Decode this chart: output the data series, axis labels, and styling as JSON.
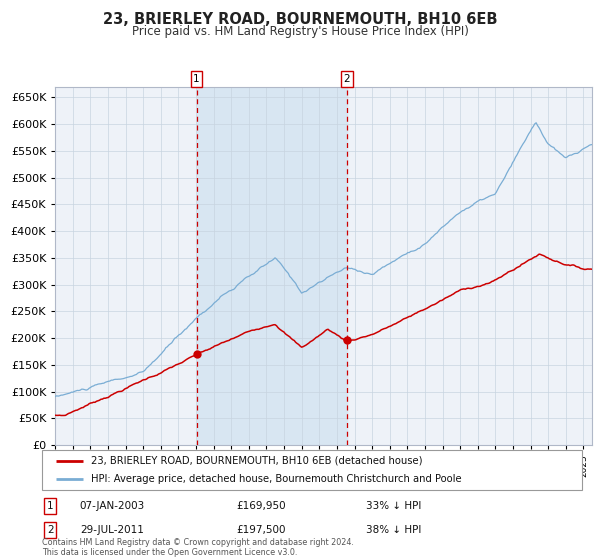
{
  "title": "23, BRIERLEY ROAD, BOURNEMOUTH, BH10 6EB",
  "subtitle": "Price paid vs. HM Land Registry's House Price Index (HPI)",
  "legend_line1": "23, BRIERLEY ROAD, BOURNEMOUTH, BH10 6EB (detached house)",
  "legend_line2": "HPI: Average price, detached house, Bournemouth Christchurch and Poole",
  "transaction1_date": "07-JAN-2003",
  "transaction1_price": 169950,
  "transaction1_hpi_pct": "33% ↓ HPI",
  "transaction1_year": 2003.03,
  "transaction1_value": 169950,
  "transaction2_date": "29-JUL-2011",
  "transaction2_price": 197500,
  "transaction2_hpi_pct": "38% ↓ HPI",
  "transaction2_year": 2011.57,
  "transaction2_value": 197500,
  "hpi_color": "#7aadd4",
  "property_color": "#cc0000",
  "background_color": "#ffffff",
  "plot_bg_color": "#eef2f8",
  "shade_color": "#d8e6f2",
  "grid_color": "#c8d4e0",
  "footnote": "Contains HM Land Registry data © Crown copyright and database right 2024.\nThis data is licensed under the Open Government Licence v3.0.",
  "ylim": [
    0,
    670000
  ],
  "yticks": [
    0,
    50000,
    100000,
    150000,
    200000,
    250000,
    300000,
    350000,
    400000,
    450000,
    500000,
    550000,
    600000,
    650000
  ],
  "xlim_start": 1995.0,
  "xlim_end": 2025.5
}
